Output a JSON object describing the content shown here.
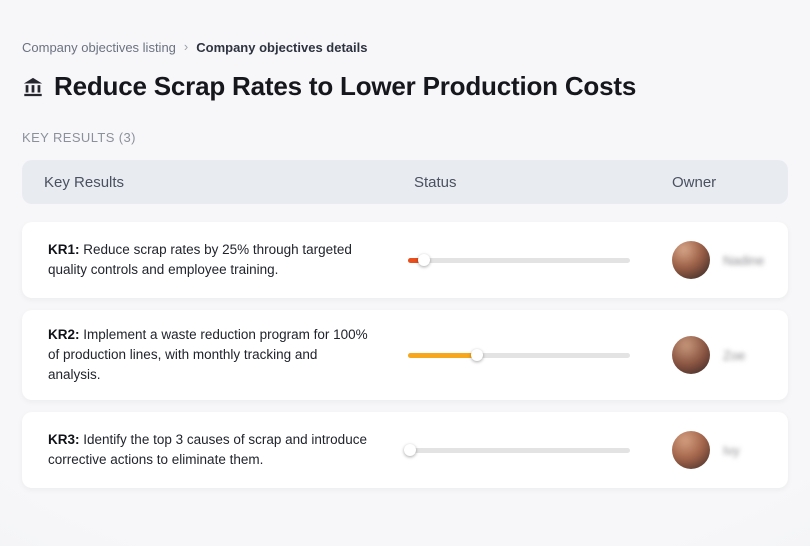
{
  "breadcrumb": {
    "items": [
      {
        "label": "Company objectives listing"
      },
      {
        "label": "Company objectives details"
      }
    ],
    "separator": "›"
  },
  "page": {
    "title": "Reduce Scrap Rates to Lower Production Costs",
    "title_icon": "building-icon",
    "section_label": "KEY RESULTS (3)"
  },
  "table": {
    "columns": [
      "Key Results",
      "Status",
      "Owner"
    ],
    "rows": [
      {
        "kr_label": "KR1:",
        "description": "Reduce scrap rates by 25% through targeted quality controls and employee training.",
        "progress_percent": 7,
        "progress_color": "#e94e1d",
        "owner": {
          "name": "Nadine"
        }
      },
      {
        "kr_label": "KR2:",
        "description": "Implement a waste reduction program for 100% of production lines, with monthly tracking and analysis.",
        "progress_percent": 31,
        "progress_color": "#f6a71b",
        "owner": {
          "name": "Zoe"
        }
      },
      {
        "kr_label": "KR3:",
        "description": "Identify the top 3 causes of scrap and introduce corrective actions to eliminate them.",
        "progress_percent": 1,
        "progress_color": "#e0341b",
        "owner": {
          "name": "Ivy"
        }
      }
    ]
  },
  "colors": {
    "page_bg": "#f2f3f5",
    "header_bg": "#e8ebf0",
    "card_bg": "#ffffff",
    "accent_red": "#e94e1d",
    "accent_orange": "#f6a71b"
  }
}
